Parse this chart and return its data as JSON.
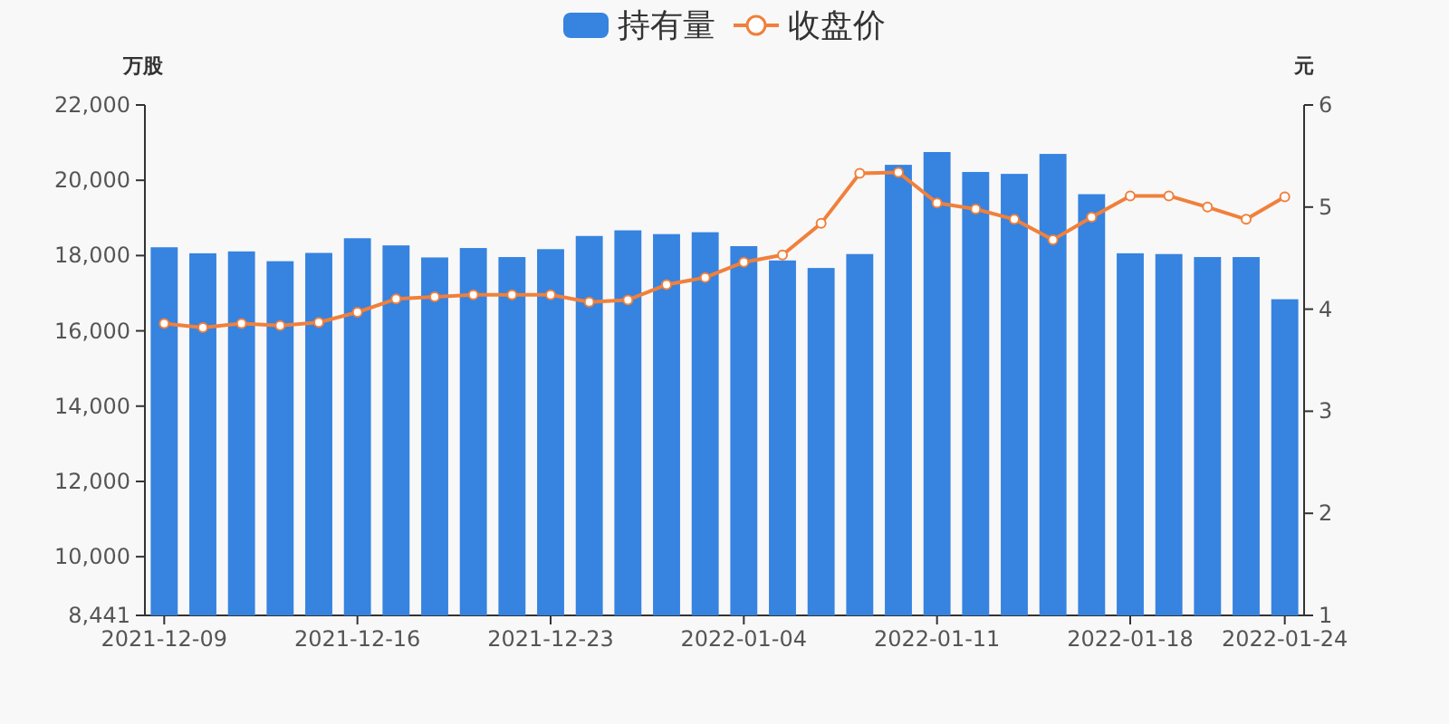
{
  "chart_data": {
    "type": "bar",
    "categories": [
      "2021-12-09",
      null,
      null,
      null,
      null,
      "2021-12-16",
      null,
      null,
      null,
      null,
      "2021-12-23",
      null,
      null,
      null,
      null,
      "2022-01-04",
      null,
      null,
      null,
      null,
      "2022-01-11",
      null,
      null,
      null,
      null,
      "2022-01-18",
      null,
      null,
      null,
      "2022-01-24"
    ],
    "series": [
      {
        "name": "持有量",
        "color": "#3683e0",
        "values": [
          18220,
          18060,
          18110,
          17850,
          18070,
          18460,
          18270,
          17950,
          18200,
          17960,
          18170,
          18520,
          18670,
          18570,
          18620,
          18250,
          17870,
          17670,
          18040,
          20410,
          20750,
          20220,
          20170,
          20700,
          19630,
          18060,
          18040,
          17960,
          17960,
          16840
        ]
      },
      {
        "name": "收盘价",
        "type": "line",
        "axis": "y2",
        "color": "#f0803c",
        "marker": "circle",
        "values": [
          3.86,
          3.82,
          3.86,
          3.84,
          3.87,
          3.97,
          4.1,
          4.12,
          4.14,
          4.14,
          4.14,
          4.07,
          4.09,
          4.24,
          4.31,
          4.46,
          4.53,
          4.84,
          5.33,
          5.34,
          5.04,
          4.98,
          4.88,
          4.68,
          4.9,
          5.11,
          5.11,
          5.0,
          4.88,
          5.1
        ]
      }
    ],
    "ylabel": "万股",
    "y2label": "元",
    "ylim": [
      8441,
      22000
    ],
    "yticks": [
      {
        "value": 8441,
        "label": "8,441"
      },
      {
        "value": 10000,
        "label": "10,000"
      },
      {
        "value": 12000,
        "label": "12,000"
      },
      {
        "value": 14000,
        "label": "14,000"
      },
      {
        "value": 16000,
        "label": "16,000"
      },
      {
        "value": 18000,
        "label": "18,000"
      },
      {
        "value": 20000,
        "label": "20,000"
      },
      {
        "value": 22000,
        "label": "22,000"
      }
    ],
    "y2lim": [
      1,
      6
    ],
    "y2ticks": [
      1,
      2,
      3,
      4,
      5,
      6
    ],
    "grid": false,
    "legend": "top"
  }
}
